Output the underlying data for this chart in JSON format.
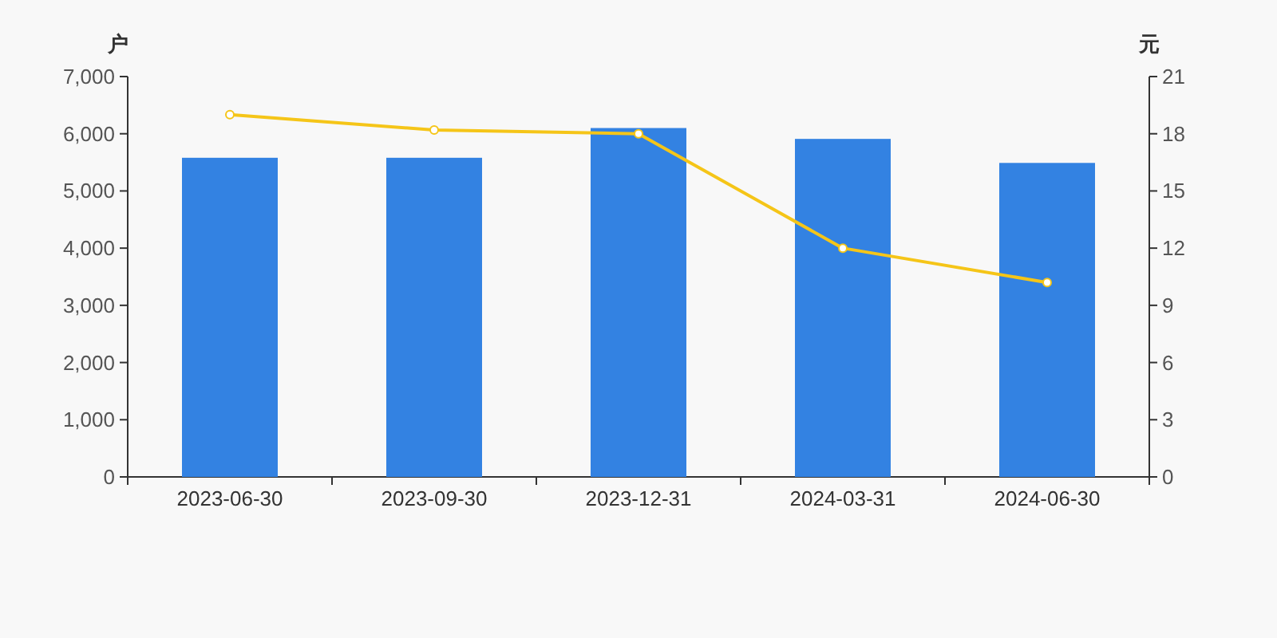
{
  "chart_data": {
    "type": "bar",
    "ylabel": "户",
    "y2label": "元",
    "categories": [
      "2023-06-30",
      "2023-09-30",
      "2023-12-31",
      "2024-03-31",
      "2024-06-30"
    ],
    "series": [
      {
        "color": "#3382e2",
        "values": [
          5580,
          5580,
          6100,
          5910,
          5490
        ]
      },
      {
        "type": "line",
        "axis": "y2",
        "color": "#f5c518",
        "marker": "circle",
        "values": [
          19.0,
          18.2,
          18.0,
          12.0,
          10.2
        ]
      }
    ],
    "ylim": [
      0,
      7000
    ],
    "yticks": [
      0,
      {
        "value": 1000,
        "label": "1,000"
      },
      {
        "value": 2000,
        "label": "2,000"
      },
      {
        "value": 3000,
        "label": "3,000"
      },
      {
        "value": 4000,
        "label": "4,000"
      },
      {
        "value": 5000,
        "label": "5,000"
      },
      {
        "value": 6000,
        "label": "6,000"
      },
      {
        "value": 7000,
        "label": "7,000"
      }
    ],
    "y2lim": [
      0,
      21
    ],
    "y2ticks": [
      0,
      3,
      6,
      9,
      12,
      15,
      18,
      21
    ],
    "grid": false
  }
}
